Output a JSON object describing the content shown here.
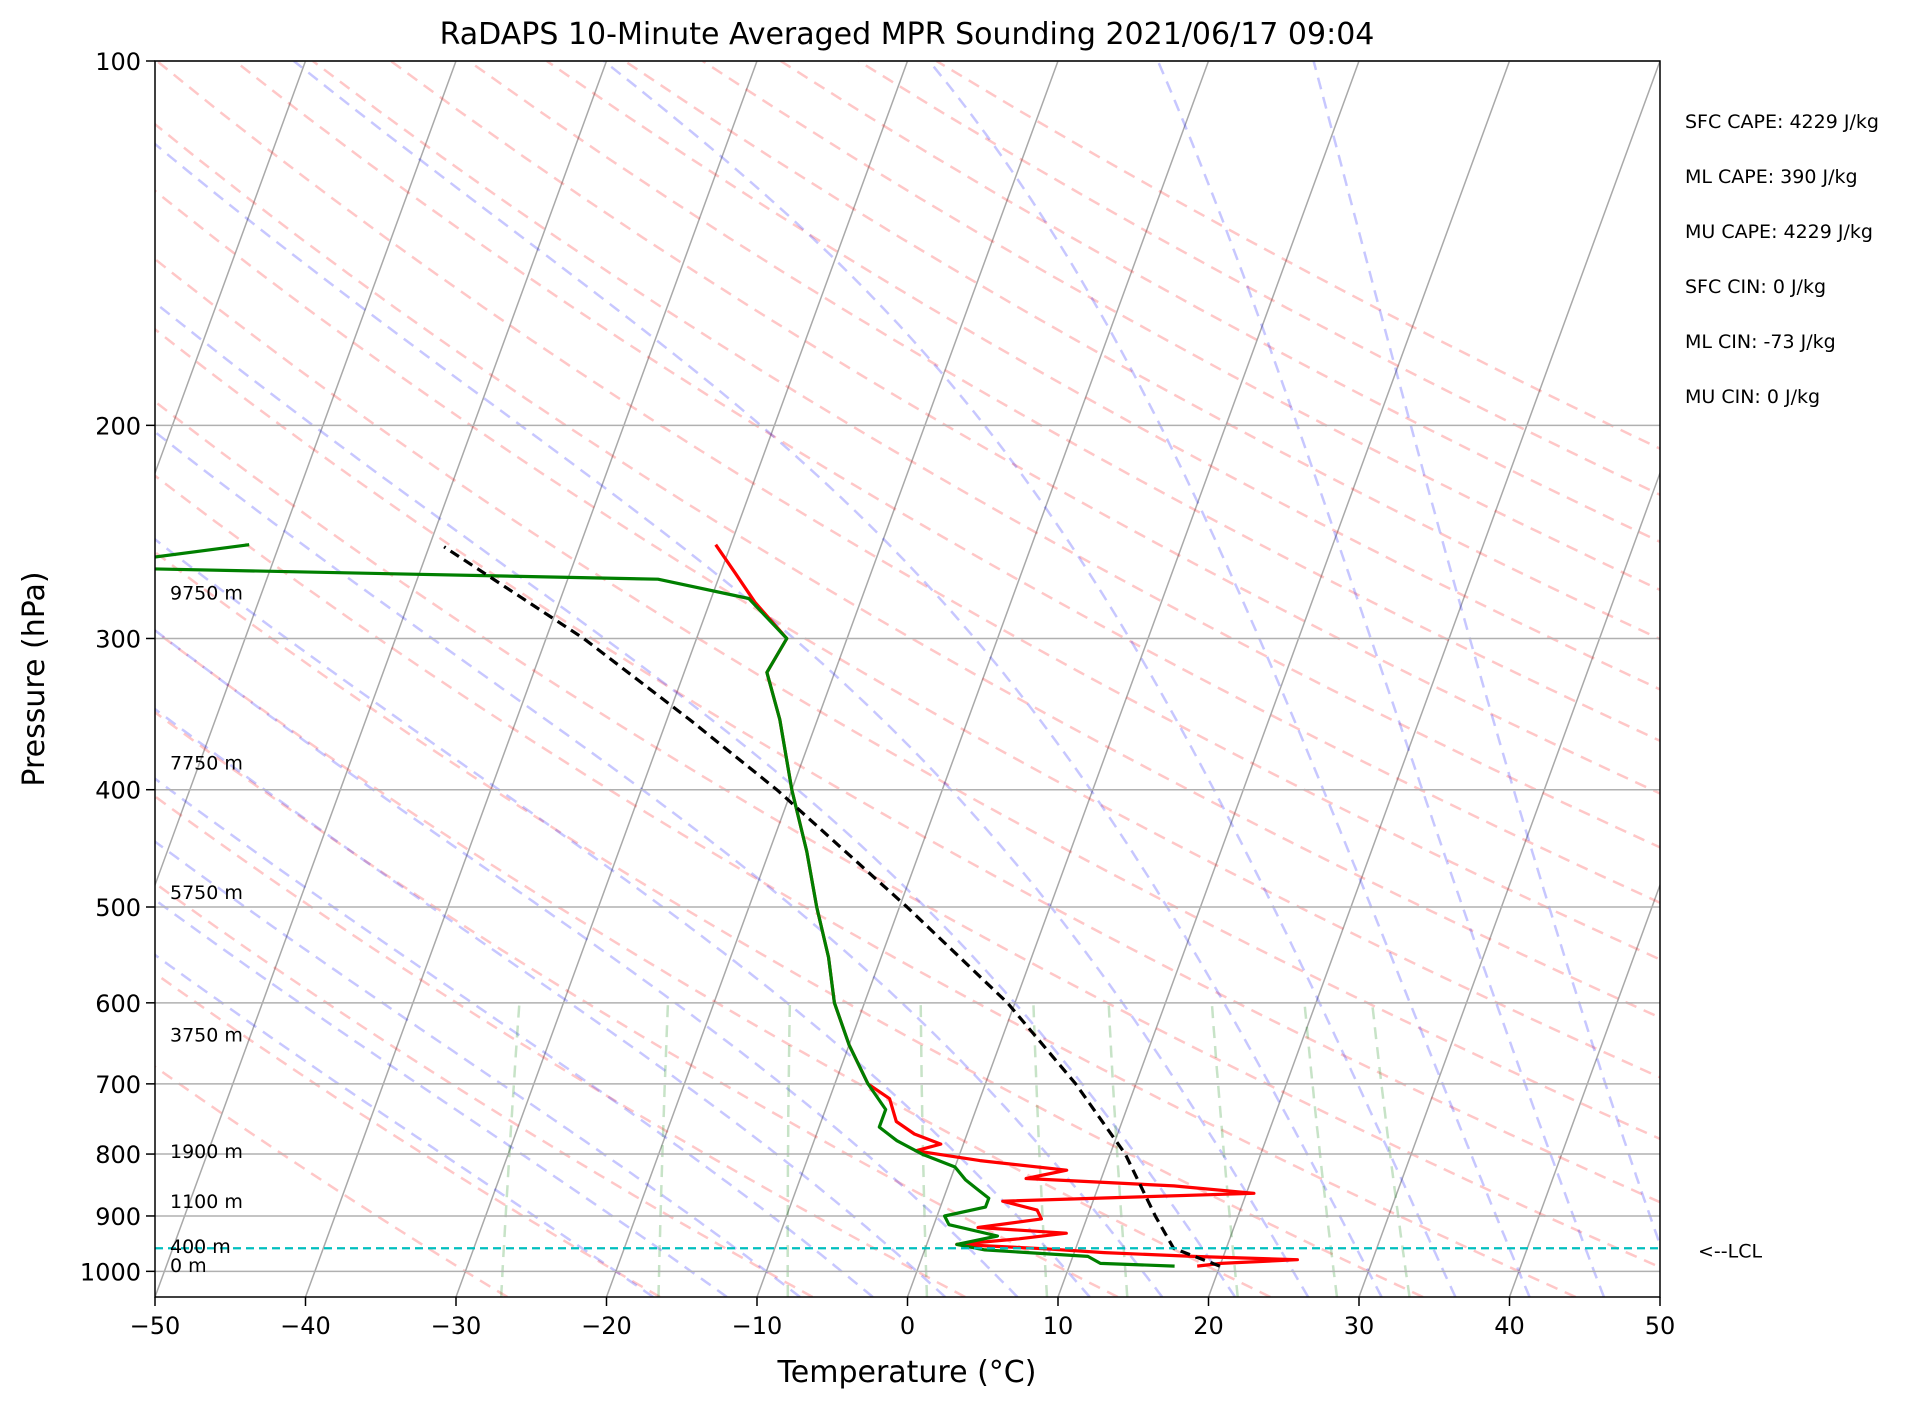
{
  "chart_data": {
    "type": "line",
    "subtype": "skew-T log-P sounding",
    "title": "RaDAPS 10-Minute Averaged MPR Sounding 2021/06/17 09:04",
    "xlabel": "Temperature (°C)",
    "ylabel": "Pressure (hPa)",
    "xlim": [
      -50,
      50
    ],
    "ylim": [
      1050,
      100
    ],
    "y_scale": "log",
    "x_ticks": [
      "−50",
      "−40",
      "−30",
      "−20",
      "−10",
      "0",
      "10",
      "20",
      "30",
      "40",
      "50"
    ],
    "x_tick_values": [
      -50,
      -40,
      -30,
      -20,
      -10,
      0,
      10,
      20,
      30,
      40,
      50
    ],
    "y_ticks": [
      "100",
      "200",
      "300",
      "400",
      "500",
      "600",
      "700",
      "800",
      "900",
      "1000"
    ],
    "y_tick_values": [
      100,
      200,
      300,
      400,
      500,
      600,
      700,
      800,
      900,
      1000
    ],
    "grid": true,
    "background_lines": {
      "isotherms": "gray skewed lines every 10 °C",
      "dry_adiabats": "red dashed",
      "moist_adiabats": "blue dashed",
      "mixing_ratio": "green dashed (below 600 hPa)"
    },
    "series": [
      {
        "role": "temperature",
        "color": "#ff0000",
        "points": [
          {
            "p": 990,
            "t": 18.5
          },
          {
            "p": 985,
            "t": 20.0
          },
          {
            "p": 978,
            "t": 25.0
          },
          {
            "p": 972,
            "t": 18.0
          },
          {
            "p": 965,
            "t": 12.0
          },
          {
            "p": 958,
            "t": 8.0
          },
          {
            "p": 950,
            "t": 2.0
          },
          {
            "p": 940,
            "t": 6.0
          },
          {
            "p": 930,
            "t": 9.0
          },
          {
            "p": 920,
            "t": 3.0
          },
          {
            "p": 905,
            "t": 7.0
          },
          {
            "p": 890,
            "t": 6.5
          },
          {
            "p": 875,
            "t": 4.0
          },
          {
            "p": 862,
            "t": 20.5
          },
          {
            "p": 850,
            "t": 15.0
          },
          {
            "p": 838,
            "t": 5.0
          },
          {
            "p": 825,
            "t": 7.5
          },
          {
            "p": 810,
            "t": 1.5
          },
          {
            "p": 795,
            "t": -3.0
          },
          {
            "p": 785,
            "t": -1.5
          },
          {
            "p": 770,
            "t": -3.5
          },
          {
            "p": 752,
            "t": -5.0
          },
          {
            "p": 720,
            "t": -6.0
          },
          {
            "p": 700,
            "t": -7.8
          },
          {
            "p": 650,
            "t": -10.0
          },
          {
            "p": 600,
            "t": -12.0
          },
          {
            "p": 550,
            "t": -13.5
          },
          {
            "p": 500,
            "t": -15.5
          },
          {
            "p": 450,
            "t": -17.5
          },
          {
            "p": 400,
            "t": -20.0
          },
          {
            "p": 350,
            "t": -22.5
          },
          {
            "p": 320,
            "t": -24.5
          },
          {
            "p": 300,
            "t": -24.0
          },
          {
            "p": 280,
            "t": -27.0
          },
          {
            "p": 265,
            "t": -29.0
          },
          {
            "p": 251,
            "t": -31.0
          }
        ]
      },
      {
        "role": "dewpoint",
        "color": "#007f00",
        "points": [
          {
            "p": 990,
            "t": 17.0
          },
          {
            "p": 985,
            "t": 12.0
          },
          {
            "p": 972,
            "t": 11.0
          },
          {
            "p": 960,
            "t": 4.0
          },
          {
            "p": 950,
            "t": 2.0
          },
          {
            "p": 935,
            "t": 4.5
          },
          {
            "p": 915,
            "t": 1.0
          },
          {
            "p": 900,
            "t": 0.5
          },
          {
            "p": 885,
            "t": 3.0
          },
          {
            "p": 870,
            "t": 3.0
          },
          {
            "p": 855,
            "t": 2.0
          },
          {
            "p": 840,
            "t": 1.0
          },
          {
            "p": 820,
            "t": 0.0
          },
          {
            "p": 800,
            "t": -2.5
          },
          {
            "p": 780,
            "t": -4.5
          },
          {
            "p": 760,
            "t": -6.0
          },
          {
            "p": 735,
            "t": -6.0
          },
          {
            "p": 700,
            "t": -7.8
          },
          {
            "p": 650,
            "t": -10.0
          },
          {
            "p": 600,
            "t": -12.0
          },
          {
            "p": 550,
            "t": -13.5
          },
          {
            "p": 500,
            "t": -15.5
          },
          {
            "p": 450,
            "t": -17.5
          },
          {
            "p": 400,
            "t": -20.0
          },
          {
            "p": 350,
            "t": -22.5
          },
          {
            "p": 320,
            "t": -24.5
          },
          {
            "p": 300,
            "t": -24.0
          },
          {
            "p": 278,
            "t": -27.5
          },
          {
            "p": 268,
            "t": -34.0
          },
          {
            "p": 262,
            "t": -73.0
          },
          {
            "p": 251,
            "t": -62.0
          }
        ]
      },
      {
        "role": "parcel profile",
        "color": "#000000",
        "style": "dashed",
        "points": [
          {
            "p": 990,
            "t": 20.0
          },
          {
            "p": 957,
            "t": 16.5
          },
          {
            "p": 900,
            "t": 14.5
          },
          {
            "p": 800,
            "t": 11.0
          },
          {
            "p": 700,
            "t": 6.0
          },
          {
            "p": 600,
            "t": -0.5
          },
          {
            "p": 500,
            "t": -9.5
          },
          {
            "p": 400,
            "t": -21.0
          },
          {
            "p": 350,
            "t": -28.5
          },
          {
            "p": 300,
            "t": -37.5
          },
          {
            "p": 252,
            "t": -49.0
          }
        ]
      }
    ],
    "lcl": {
      "pressure": 957,
      "label": "<--LCL",
      "color": "#00bfbf"
    },
    "height_labels": [
      {
        "p": 988,
        "text": "0 m"
      },
      {
        "p": 953,
        "text": "400 m"
      },
      {
        "p": 875,
        "text": "1100 m"
      },
      {
        "p": 795,
        "text": "1900 m"
      },
      {
        "p": 637,
        "text": "3750 m"
      },
      {
        "p": 486,
        "text": "5750 m"
      },
      {
        "p": 380,
        "text": "7750 m"
      },
      {
        "p": 275,
        "text": "9750 m"
      }
    ],
    "stats": [
      "SFC CAPE: 4229 J/kg",
      "ML CAPE: 390 J/kg",
      "MU CAPE: 4229 J/kg",
      "SFC CIN: 0 J/kg",
      "ML CIN: -73 J/kg",
      "MU CIN: 0 J/kg"
    ]
  }
}
